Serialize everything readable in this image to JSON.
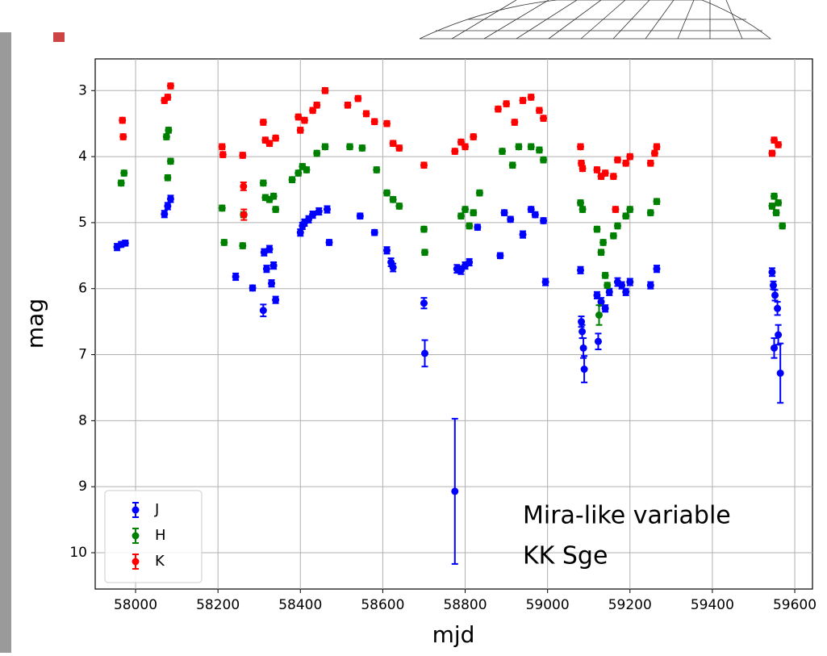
{
  "chart_data": {
    "type": "errorbar",
    "xlabel": "mjd",
    "ylabel": "mag",
    "annotations": [
      "Mira-like variable",
      "KK Sge"
    ],
    "xlim": [
      57902,
      59643
    ],
    "ylim": [
      2.52,
      10.55
    ],
    "y_inverted": true,
    "grid": true,
    "legend": "lower left",
    "xticks": [
      58000,
      58200,
      58400,
      58600,
      58800,
      59000,
      59200,
      59400,
      59600
    ],
    "yticks": [
      3,
      4,
      5,
      6,
      7,
      8,
      9,
      10
    ],
    "series": [
      {
        "name": "J",
        "color": "#0000ff",
        "x": [
          57955,
          57965,
          57975,
          58070,
          58078,
          58085,
          58243,
          58284,
          58310,
          58312,
          58318,
          58325,
          58330,
          58335,
          58340,
          58400,
          58405,
          58410,
          58420,
          58430,
          58445,
          58465,
          58470,
          58545,
          58580,
          58610,
          58620,
          58625,
          58700,
          58702,
          58775,
          58780,
          58790,
          58800,
          58810,
          58830,
          58885,
          58895,
          58910,
          58940,
          58960,
          58970,
          58990,
          58995,
          59080,
          59082,
          59084,
          59087,
          59089,
          59120,
          59123,
          59130,
          59140,
          59150,
          59170,
          59180,
          59190,
          59200,
          59250,
          59265,
          59545,
          59548,
          59552,
          59558,
          59560,
          59550,
          59565
        ],
        "values": [
          5.37,
          5.33,
          5.31,
          4.87,
          4.75,
          4.64,
          5.82,
          5.99,
          6.33,
          5.45,
          5.7,
          5.4,
          5.92,
          5.65,
          6.17,
          5.15,
          5.05,
          5.0,
          4.95,
          4.88,
          4.83,
          4.8,
          5.3,
          4.9,
          5.15,
          5.42,
          5.6,
          5.68,
          6.22,
          6.98,
          9.07,
          5.7,
          5.72,
          5.65,
          5.6,
          5.07,
          5.5,
          4.85,
          4.95,
          5.18,
          4.8,
          4.88,
          4.97,
          5.9,
          5.72,
          6.5,
          6.65,
          6.9,
          7.22,
          6.1,
          6.8,
          6.2,
          6.3,
          6.05,
          5.9,
          5.95,
          6.05,
          5.9,
          5.95,
          5.7,
          5.75,
          5.95,
          6.1,
          6.3,
          6.7,
          6.9,
          7.28
        ],
        "errors": [
          0.05,
          0.04,
          0.04,
          0.05,
          0.05,
          0.05,
          0.05,
          0.04,
          0.09,
          0.05,
          0.05,
          0.05,
          0.05,
          0.05,
          0.05,
          0.05,
          0.05,
          0.05,
          0.05,
          0.05,
          0.05,
          0.05,
          0.04,
          0.04,
          0.04,
          0.05,
          0.06,
          0.06,
          0.08,
          0.2,
          1.1,
          0.06,
          0.06,
          0.05,
          0.05,
          0.04,
          0.04,
          0.04,
          0.04,
          0.05,
          0.04,
          0.04,
          0.04,
          0.05,
          0.05,
          0.08,
          0.1,
          0.15,
          0.2,
          0.05,
          0.12,
          0.06,
          0.05,
          0.05,
          0.06,
          0.05,
          0.05,
          0.05,
          0.05,
          0.05,
          0.06,
          0.06,
          0.08,
          0.1,
          0.15,
          0.15,
          0.45
        ]
      },
      {
        "name": "H",
        "color": "#008000",
        "x": [
          57965,
          57972,
          58075,
          58080,
          58085,
          58078,
          58210,
          58215,
          58260,
          58262,
          58310,
          58315,
          58325,
          58335,
          58340,
          58380,
          58395,
          58405,
          58415,
          58440,
          58460,
          58520,
          58550,
          58585,
          58610,
          58625,
          58640,
          58700,
          58702,
          58790,
          58800,
          58810,
          58820,
          58835,
          58890,
          58915,
          58930,
          58960,
          58980,
          58990,
          59080,
          59085,
          59120,
          59125,
          59130,
          59135,
          59140,
          59145,
          59160,
          59170,
          59190,
          59200,
          59250,
          59265,
          59545,
          59550,
          59555,
          59560,
          59570
        ],
        "values": [
          4.4,
          4.25,
          3.7,
          3.6,
          4.07,
          4.32,
          4.78,
          5.3,
          5.35,
          4.88,
          4.4,
          4.62,
          4.65,
          4.6,
          4.8,
          4.35,
          4.25,
          4.15,
          4.2,
          3.95,
          3.85,
          3.85,
          3.87,
          4.2,
          4.55,
          4.65,
          4.75,
          5.1,
          5.45,
          4.9,
          4.8,
          5.05,
          4.85,
          4.55,
          3.92,
          4.13,
          3.85,
          3.85,
          3.9,
          4.05,
          4.7,
          4.8,
          5.1,
          6.4,
          5.45,
          5.3,
          5.8,
          5.95,
          5.2,
          5.05,
          4.9,
          4.8,
          4.85,
          4.68,
          4.75,
          4.6,
          4.85,
          4.7,
          5.05
        ],
        "errors": [
          0.04,
          0.04,
          0.04,
          0.04,
          0.04,
          0.04,
          0.04,
          0.04,
          0.04,
          0.04,
          0.04,
          0.04,
          0.04,
          0.04,
          0.04,
          0.04,
          0.04,
          0.04,
          0.04,
          0.04,
          0.04,
          0.04,
          0.04,
          0.04,
          0.04,
          0.04,
          0.04,
          0.04,
          0.04,
          0.04,
          0.04,
          0.04,
          0.04,
          0.04,
          0.04,
          0.04,
          0.04,
          0.04,
          0.04,
          0.04,
          0.04,
          0.04,
          0.04,
          0.15,
          0.04,
          0.04,
          0.04,
          0.04,
          0.04,
          0.04,
          0.04,
          0.04,
          0.04,
          0.04,
          0.04,
          0.04,
          0.04,
          0.04,
          0.04
        ]
      },
      {
        "name": "K",
        "color": "#ff0000",
        "x": [
          57968,
          57970,
          58070,
          58078,
          58085,
          58210,
          58212,
          58260,
          58262,
          58263,
          58310,
          58315,
          58325,
          58340,
          58395,
          58400,
          58410,
          58430,
          58440,
          58460,
          58515,
          58540,
          58560,
          58580,
          58610,
          58625,
          58640,
          58700,
          58775,
          58790,
          58800,
          58820,
          58880,
          58900,
          58920,
          58940,
          58960,
          58980,
          58990,
          59080,
          59082,
          59085,
          59120,
          59130,
          59140,
          59160,
          59165,
          59170,
          59190,
          59200,
          59250,
          59260,
          59265,
          59545,
          59550,
          59560
        ],
        "values": [
          3.45,
          3.7,
          3.15,
          3.1,
          2.93,
          3.85,
          3.97,
          3.98,
          4.45,
          4.88,
          3.48,
          3.75,
          3.8,
          3.72,
          3.4,
          3.6,
          3.45,
          3.3,
          3.22,
          3.0,
          3.22,
          3.12,
          3.35,
          3.47,
          3.5,
          3.8,
          3.87,
          4.13,
          3.92,
          3.78,
          3.85,
          3.7,
          3.28,
          3.2,
          3.48,
          3.15,
          3.1,
          3.3,
          3.42,
          3.85,
          4.1,
          4.18,
          4.2,
          4.3,
          4.25,
          4.3,
          4.8,
          4.05,
          4.1,
          4.0,
          4.1,
          3.95,
          3.85,
          3.95,
          3.75,
          3.82
        ],
        "errors": [
          0.04,
          0.04,
          0.04,
          0.04,
          0.04,
          0.04,
          0.04,
          0.04,
          0.06,
          0.08,
          0.04,
          0.04,
          0.04,
          0.04,
          0.04,
          0.04,
          0.04,
          0.04,
          0.04,
          0.04,
          0.04,
          0.04,
          0.04,
          0.04,
          0.04,
          0.04,
          0.04,
          0.04,
          0.04,
          0.04,
          0.04,
          0.04,
          0.04,
          0.04,
          0.04,
          0.04,
          0.04,
          0.04,
          0.04,
          0.04,
          0.04,
          0.04,
          0.04,
          0.04,
          0.04,
          0.04,
          0.04,
          0.04,
          0.04,
          0.04,
          0.04,
          0.04,
          0.04,
          0.04,
          0.04,
          0.04
        ]
      }
    ]
  }
}
